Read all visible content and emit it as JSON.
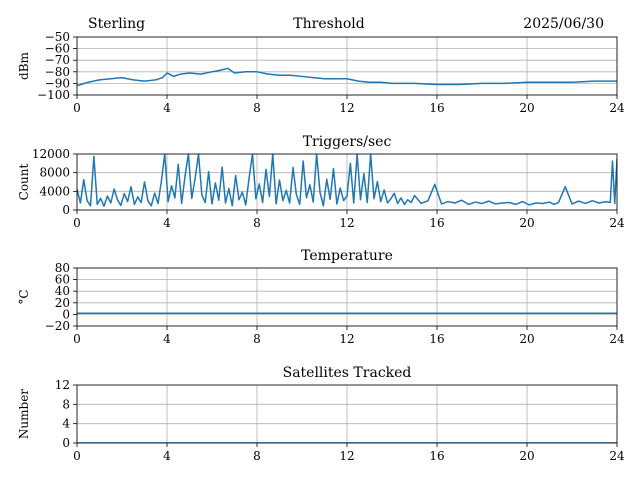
{
  "header": {
    "left": "Sterling",
    "center": "Threshold",
    "right": "2025/06/30"
  },
  "colors": {
    "series": "#1f77b4",
    "grid": "#b0b0b0",
    "axis": "#000000"
  },
  "chart_data": [
    {
      "type": "line",
      "title": "Threshold",
      "ylabel": "dBm",
      "xlim": [
        0,
        24
      ],
      "ylim": [
        -100,
        -50
      ],
      "xticks": [
        0,
        4,
        8,
        12,
        16,
        20,
        24
      ],
      "yticks": [
        -100,
        -90,
        -80,
        -70,
        -60,
        -50
      ],
      "ytick_labels": [
        "−100",
        "−90",
        "−80",
        "−70",
        "−60",
        "−50"
      ],
      "grid": true,
      "series": [
        {
          "x": [
            0,
            0.5,
            1,
            1.5,
            2,
            2.5,
            3,
            3.5,
            3.8,
            4,
            4.3,
            4.6,
            5,
            5.5,
            6,
            6.3,
            6.7,
            7,
            7.5,
            8,
            8.5,
            9,
            9.5,
            10,
            10.5,
            11,
            11.5,
            12,
            12.5,
            13,
            13.5,
            14,
            15,
            16,
            17,
            18,
            19,
            20,
            21,
            22,
            23,
            24
          ],
          "y": [
            -92,
            -89,
            -87,
            -86,
            -85,
            -87,
            -88,
            -87,
            -85,
            -81,
            -84,
            -82,
            -81,
            -82,
            -80,
            -79,
            -77,
            -81,
            -80,
            -80,
            -82,
            -83,
            -83,
            -84,
            -85,
            -86,
            -86,
            -86,
            -88,
            -89,
            -89,
            -90,
            -90,
            -91,
            -91,
            -90,
            -90,
            -89,
            -89,
            -89,
            -88,
            -88
          ]
        }
      ]
    },
    {
      "type": "line",
      "title": "Triggers/sec",
      "ylabel": "Count",
      "xlim": [
        0,
        24
      ],
      "ylim": [
        0,
        12000
      ],
      "xticks": [
        0,
        4,
        8,
        12,
        16,
        20,
        24
      ],
      "yticks": [
        0,
        4000,
        8000,
        12000
      ],
      "ytick_labels": [
        "0",
        "4000",
        "8000",
        "12000"
      ],
      "grid": true,
      "series": [
        {
          "x": [
            0,
            0.15,
            0.3,
            0.45,
            0.6,
            0.75,
            0.9,
            1.05,
            1.2,
            1.35,
            1.5,
            1.65,
            1.8,
            1.95,
            2.1,
            2.25,
            2.4,
            2.55,
            2.7,
            2.85,
            3.0,
            3.15,
            3.3,
            3.45,
            3.6,
            3.75,
            3.9,
            4.05,
            4.2,
            4.35,
            4.5,
            4.65,
            4.8,
            4.95,
            5.1,
            5.25,
            5.4,
            5.55,
            5.7,
            5.85,
            6.0,
            6.15,
            6.3,
            6.45,
            6.6,
            6.75,
            6.9,
            7.05,
            7.2,
            7.35,
            7.5,
            7.65,
            7.8,
            7.95,
            8.1,
            8.25,
            8.4,
            8.55,
            8.7,
            8.85,
            9.0,
            9.15,
            9.3,
            9.45,
            9.6,
            9.75,
            9.9,
            10.05,
            10.2,
            10.35,
            10.5,
            10.65,
            10.8,
            10.95,
            11.1,
            11.25,
            11.4,
            11.55,
            11.7,
            11.85,
            12.0,
            12.15,
            12.3,
            12.45,
            12.6,
            12.75,
            12.9,
            13.05,
            13.2,
            13.35,
            13.5,
            13.65,
            13.8,
            13.95,
            14.1,
            14.25,
            14.4,
            14.55,
            14.7,
            14.85,
            15.0,
            15.3,
            15.6,
            15.9,
            16.2,
            16.5,
            16.8,
            17.1,
            17.4,
            17.7,
            18.0,
            18.3,
            18.6,
            18.9,
            19.2,
            19.5,
            19.8,
            20.1,
            20.4,
            20.7,
            21.0,
            21.2,
            21.4,
            21.7,
            22.0,
            22.3,
            22.6,
            22.9,
            23.2,
            23.5,
            23.7,
            23.8,
            23.9,
            24.0
          ],
          "y": [
            4500,
            1500,
            6500,
            2000,
            900,
            11500,
            1200,
            2500,
            800,
            3000,
            1500,
            4500,
            2200,
            1000,
            3500,
            1800,
            5000,
            1200,
            2800,
            1600,
            6000,
            2000,
            900,
            3600,
            1400,
            6200,
            12000,
            1800,
            5200,
            2600,
            9800,
            1400,
            7200,
            12000,
            2500,
            6800,
            12000,
            3200,
            1600,
            8200,
            1300,
            5800,
            2100,
            9200,
            1500,
            4600,
            900,
            7400,
            2200,
            3800,
            1100,
            6900,
            12000,
            2400,
            5600,
            1600,
            8700,
            2900,
            12000,
            1300,
            6400,
            2000,
            4200,
            1500,
            9100,
            3300,
            1200,
            10500,
            2600,
            5400,
            1700,
            12000,
            3800,
            900,
            6600,
            2300,
            8900,
            1300,
            4700,
            2000,
            3000,
            10000,
            1500,
            12000,
            2200,
            7800,
            1600,
            12000,
            2400,
            6100,
            1800,
            4300,
            1500,
            2400,
            3600,
            1400,
            2600,
            1200,
            2200,
            1600,
            3100,
            1400,
            2000,
            5500,
            1300,
            1800,
            1500,
            2100,
            1200,
            1700,
            1400,
            1900,
            1300,
            1500,
            1600,
            1200,
            1800,
            1100,
            1500,
            1400,
            1700,
            1200,
            1600,
            5000,
            1300,
            1900,
            1400,
            2000,
            1500,
            1800,
            1600,
            10500,
            1400,
            11000
          ]
        }
      ]
    },
    {
      "type": "line",
      "title": "Temperature",
      "ylabel": "°C",
      "xlim": [
        0,
        24
      ],
      "ylim": [
        -20,
        80
      ],
      "xticks": [
        0,
        4,
        8,
        12,
        16,
        20,
        24
      ],
      "yticks": [
        -20,
        0,
        20,
        40,
        60,
        80
      ],
      "ytick_labels": [
        "−20",
        "0",
        "20",
        "40",
        "60",
        "80"
      ],
      "grid": true,
      "series": [
        {
          "x": [
            0,
            24
          ],
          "y": [
            2,
            2
          ]
        }
      ]
    },
    {
      "type": "line",
      "title": "Satellites Tracked",
      "ylabel": "Number",
      "xlim": [
        0,
        24
      ],
      "ylim": [
        0,
        12
      ],
      "xticks": [
        0,
        4,
        8,
        12,
        16,
        20,
        24
      ],
      "yticks": [
        0,
        4,
        8,
        12
      ],
      "ytick_labels": [
        "0",
        "4",
        "8",
        "12"
      ],
      "grid": true,
      "series": [
        {
          "x": [
            0,
            24
          ],
          "y": [
            0,
            0
          ]
        }
      ]
    }
  ]
}
